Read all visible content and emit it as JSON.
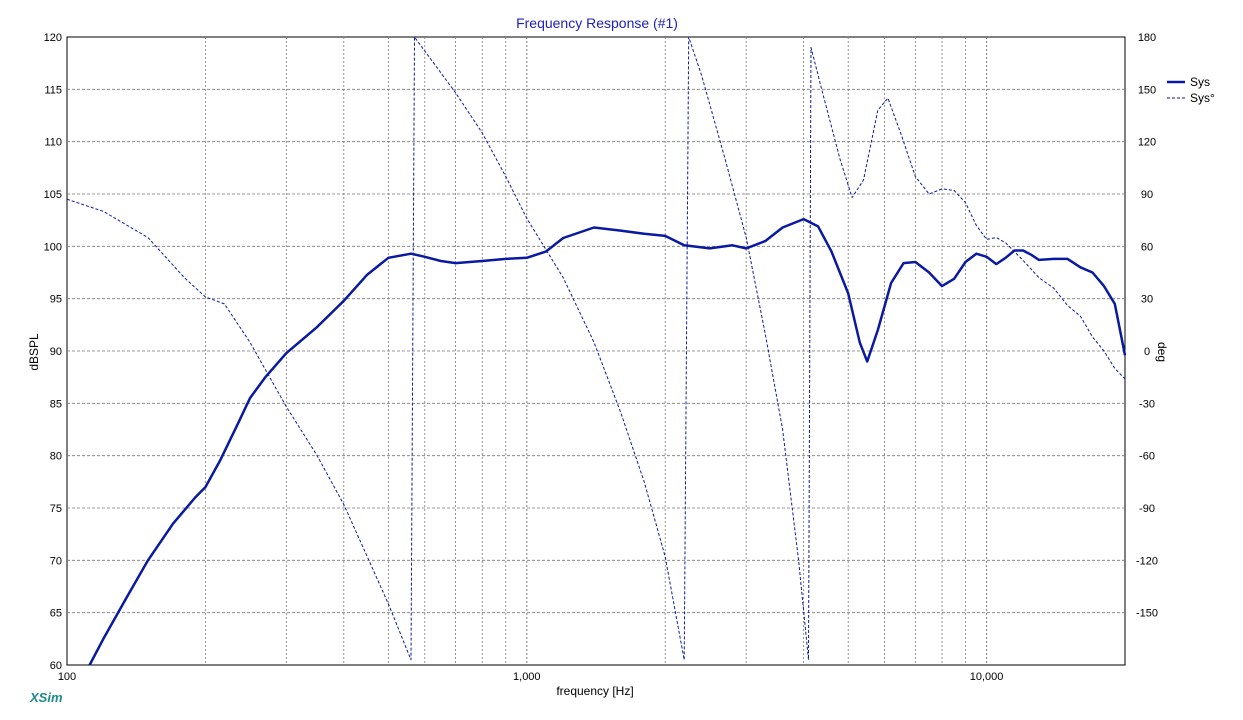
{
  "app": {
    "brand": "XSim"
  },
  "chart_data": {
    "type": "line",
    "title": "Frequency Response (#1)",
    "xlabel": "frequency [Hz]",
    "ylabel": "dBSPL",
    "y2label": "deg",
    "x_scale": "log",
    "xlim": [
      100,
      20000
    ],
    "ylim": [
      60,
      120
    ],
    "y2lim": [
      -180,
      180
    ],
    "grid": true,
    "legend_position": "top-right",
    "x_ticks": [
      {
        "value": 100,
        "label": "100"
      },
      {
        "value": 1000,
        "label": "1,000"
      },
      {
        "value": 10000,
        "label": "10,000"
      }
    ],
    "y_ticks": [
      {
        "value": 60,
        "label": "60"
      },
      {
        "value": 65,
        "label": "65"
      },
      {
        "value": 70,
        "label": "70"
      },
      {
        "value": 75,
        "label": "75"
      },
      {
        "value": 80,
        "label": "80"
      },
      {
        "value": 85,
        "label": "85"
      },
      {
        "value": 90,
        "label": "90"
      },
      {
        "value": 95,
        "label": "95"
      },
      {
        "value": 100,
        "label": "100"
      },
      {
        "value": 105,
        "label": "105"
      },
      {
        "value": 110,
        "label": "110"
      },
      {
        "value": 115,
        "label": "115"
      },
      {
        "value": 120,
        "label": "120"
      }
    ],
    "y2_ticks": [
      {
        "value": 180,
        "label": "180"
      },
      {
        "value": 150,
        "label": "150"
      },
      {
        "value": 120,
        "label": "120"
      },
      {
        "value": 90,
        "label": "90"
      },
      {
        "value": 60,
        "label": "60"
      },
      {
        "value": 30,
        "label": "30"
      },
      {
        "value": 0,
        "label": "0"
      },
      {
        "value": -30,
        "label": "-30"
      },
      {
        "value": -60,
        "label": "-60"
      },
      {
        "value": -90,
        "label": "-90"
      },
      {
        "value": -120,
        "label": "-120"
      },
      {
        "value": -150,
        "label": "-150"
      }
    ],
    "series": [
      {
        "name": "Sys",
        "axis": "left",
        "style": "solid",
        "color": "#0a1aa0",
        "points": [
          [
            112,
            60
          ],
          [
            120,
            62.5
          ],
          [
            135,
            66.5
          ],
          [
            150,
            70
          ],
          [
            170,
            73.5
          ],
          [
            190,
            76
          ],
          [
            200,
            77
          ],
          [
            215,
            79.5
          ],
          [
            235,
            83
          ],
          [
            250,
            85.5
          ],
          [
            270,
            87.5
          ],
          [
            300,
            89.8
          ],
          [
            350,
            92.3
          ],
          [
            400,
            94.8
          ],
          [
            450,
            97.3
          ],
          [
            500,
            98.9
          ],
          [
            560,
            99.3
          ],
          [
            600,
            99
          ],
          [
            650,
            98.6
          ],
          [
            700,
            98.4
          ],
          [
            800,
            98.6
          ],
          [
            900,
            98.8
          ],
          [
            1000,
            98.9
          ],
          [
            1100,
            99.5
          ],
          [
            1200,
            100.8
          ],
          [
            1400,
            101.8
          ],
          [
            1600,
            101.5
          ],
          [
            1800,
            101.2
          ],
          [
            2000,
            101
          ],
          [
            2200,
            100.1
          ],
          [
            2500,
            99.8
          ],
          [
            2800,
            100.1
          ],
          [
            3000,
            99.8
          ],
          [
            3300,
            100.5
          ],
          [
            3600,
            101.8
          ],
          [
            4000,
            102.6
          ],
          [
            4300,
            101.9
          ],
          [
            4600,
            99.5
          ],
          [
            5000,
            95.5
          ],
          [
            5300,
            90.8
          ],
          [
            5500,
            89
          ],
          [
            5800,
            92
          ],
          [
            6200,
            96.5
          ],
          [
            6600,
            98.4
          ],
          [
            7000,
            98.5
          ],
          [
            7500,
            97.5
          ],
          [
            8000,
            96.2
          ],
          [
            8500,
            96.9
          ],
          [
            9000,
            98.5
          ],
          [
            9500,
            99.3
          ],
          [
            10000,
            99
          ],
          [
            10500,
            98.3
          ],
          [
            11000,
            98.9
          ],
          [
            11500,
            99.6
          ],
          [
            12000,
            99.6
          ],
          [
            12500,
            99.2
          ],
          [
            13000,
            98.7
          ],
          [
            14000,
            98.8
          ],
          [
            15000,
            98.8
          ],
          [
            16000,
            98
          ],
          [
            17000,
            97.5
          ],
          [
            18000,
            96.2
          ],
          [
            19000,
            94.5
          ],
          [
            20000,
            89.6
          ]
        ]
      },
      {
        "name": "Sys°",
        "axis": "right",
        "style": "dashed",
        "color": "#0a1aa0",
        "points": [
          [
            100,
            87
          ],
          [
            120,
            80
          ],
          [
            150,
            65
          ],
          [
            180,
            42
          ],
          [
            200,
            31
          ],
          [
            220,
            27
          ],
          [
            250,
            5
          ],
          [
            300,
            -32
          ],
          [
            350,
            -60
          ],
          [
            400,
            -88
          ],
          [
            450,
            -118
          ],
          [
            500,
            -145
          ],
          [
            560,
            -177
          ],
          [
            570,
            180
          ],
          [
            600,
            172
          ],
          [
            700,
            148
          ],
          [
            800,
            125
          ],
          [
            900,
            100
          ],
          [
            1000,
            76
          ],
          [
            1200,
            42
          ],
          [
            1400,
            5
          ],
          [
            1600,
            -35
          ],
          [
            1800,
            -75
          ],
          [
            2000,
            -118
          ],
          [
            2200,
            -177
          ],
          [
            2250,
            180
          ],
          [
            2400,
            158
          ],
          [
            2700,
            110
          ],
          [
            3000,
            65
          ],
          [
            3300,
            10
          ],
          [
            3600,
            -45
          ],
          [
            3900,
            -120
          ],
          [
            4100,
            -177
          ],
          [
            4150,
            174
          ],
          [
            4400,
            148
          ],
          [
            4800,
            110
          ],
          [
            5100,
            88
          ],
          [
            5400,
            98
          ],
          [
            5800,
            138
          ],
          [
            6100,
            145
          ],
          [
            6500,
            125
          ],
          [
            7000,
            100
          ],
          [
            7500,
            90
          ],
          [
            8000,
            93
          ],
          [
            8500,
            92
          ],
          [
            9000,
            85
          ],
          [
            9500,
            72
          ],
          [
            10000,
            64
          ],
          [
            10500,
            65
          ],
          [
            11000,
            62
          ],
          [
            12000,
            52
          ],
          [
            13000,
            42
          ],
          [
            14000,
            36
          ],
          [
            15000,
            26
          ],
          [
            16000,
            20
          ],
          [
            17000,
            8
          ],
          [
            18000,
            0
          ],
          [
            19000,
            -10
          ],
          [
            20000,
            -16
          ]
        ]
      }
    ]
  }
}
